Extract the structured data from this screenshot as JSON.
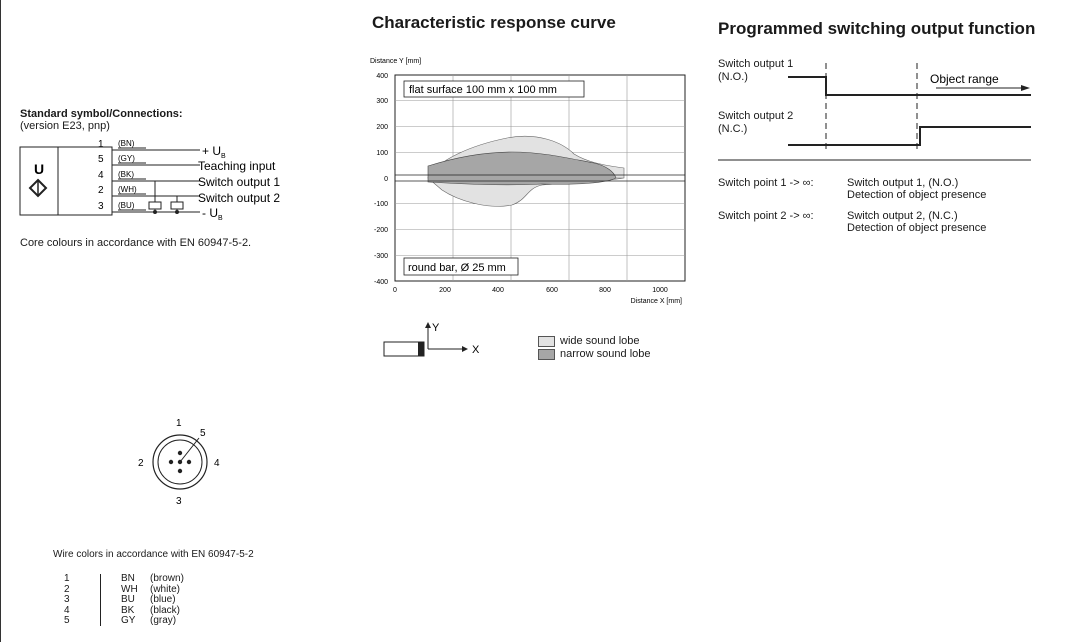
{
  "connections": {
    "title": "Standard symbol/Connections:",
    "version": "(version E23, pnp)",
    "symbol_letter": "U",
    "pins": [
      {
        "num": "1",
        "color": "(BN)",
        "label": "+ U",
        "sub": "B"
      },
      {
        "num": "5",
        "color": "(GY)",
        "label": "Teaching input",
        "sub": ""
      },
      {
        "num": "4",
        "color": "(BK)",
        "label": "Switch output 1",
        "sub": ""
      },
      {
        "num": "2",
        "color": "(WH)",
        "label": "Switch output 2",
        "sub": ""
      },
      {
        "num": "3",
        "color": "(BU)",
        "label": "- U",
        "sub": "B"
      }
    ],
    "core_note": "Core colours in accordance with EN 60947-5-2."
  },
  "connector": {
    "pin_labels": [
      "1",
      "2",
      "3",
      "4",
      "5"
    ]
  },
  "wires": {
    "title": "Wire colors in accordance with EN 60947-5-2",
    "rows": [
      {
        "num": "1",
        "code": "BN",
        "name": "(brown)"
      },
      {
        "num": "2",
        "code": "WH",
        "name": "(white)"
      },
      {
        "num": "3",
        "code": "BU",
        "name": "(blue)"
      },
      {
        "num": "4",
        "code": "BK",
        "name": "(black)"
      },
      {
        "num": "5",
        "code": "GY",
        "name": "(gray)"
      }
    ]
  },
  "curve": {
    "title": "Characteristic response curve",
    "ylabel": "Distance Y [mm]",
    "xlabel": "Distance X [mm]",
    "y_ticks": [
      "400",
      "300",
      "200",
      "100",
      "0",
      "-100",
      "-200",
      "-300",
      "-400"
    ],
    "x_ticks": [
      "0",
      "200",
      "400",
      "600",
      "800",
      "1000"
    ],
    "label_top": "flat surface 100 mm x 100 mm",
    "label_bottom": "round bar, Ø 25 mm",
    "axis_y": "Y",
    "axis_x": "X",
    "legend_wide": "wide sound lobe",
    "legend_narrow": "narrow sound lobe",
    "colors": {
      "wide": "#e2e2e2",
      "narrow": "#a6a6a6"
    }
  },
  "switching": {
    "title": "Programmed switching output function",
    "out1": [
      "Switch output 1",
      "(N.O.)"
    ],
    "out2": [
      "Switch output 2",
      "(N.C.)"
    ],
    "object_range": "Object range",
    "sp1_label": "Switch point 1 -> ∞:",
    "sp1_desc": [
      "Switch output 1, (N.O.)",
      "Detection of  object presence"
    ],
    "sp2_label": "Switch point 2 -> ∞:",
    "sp2_desc": [
      "Switch output 2, (N.C.)",
      "Detection of object presence"
    ]
  }
}
